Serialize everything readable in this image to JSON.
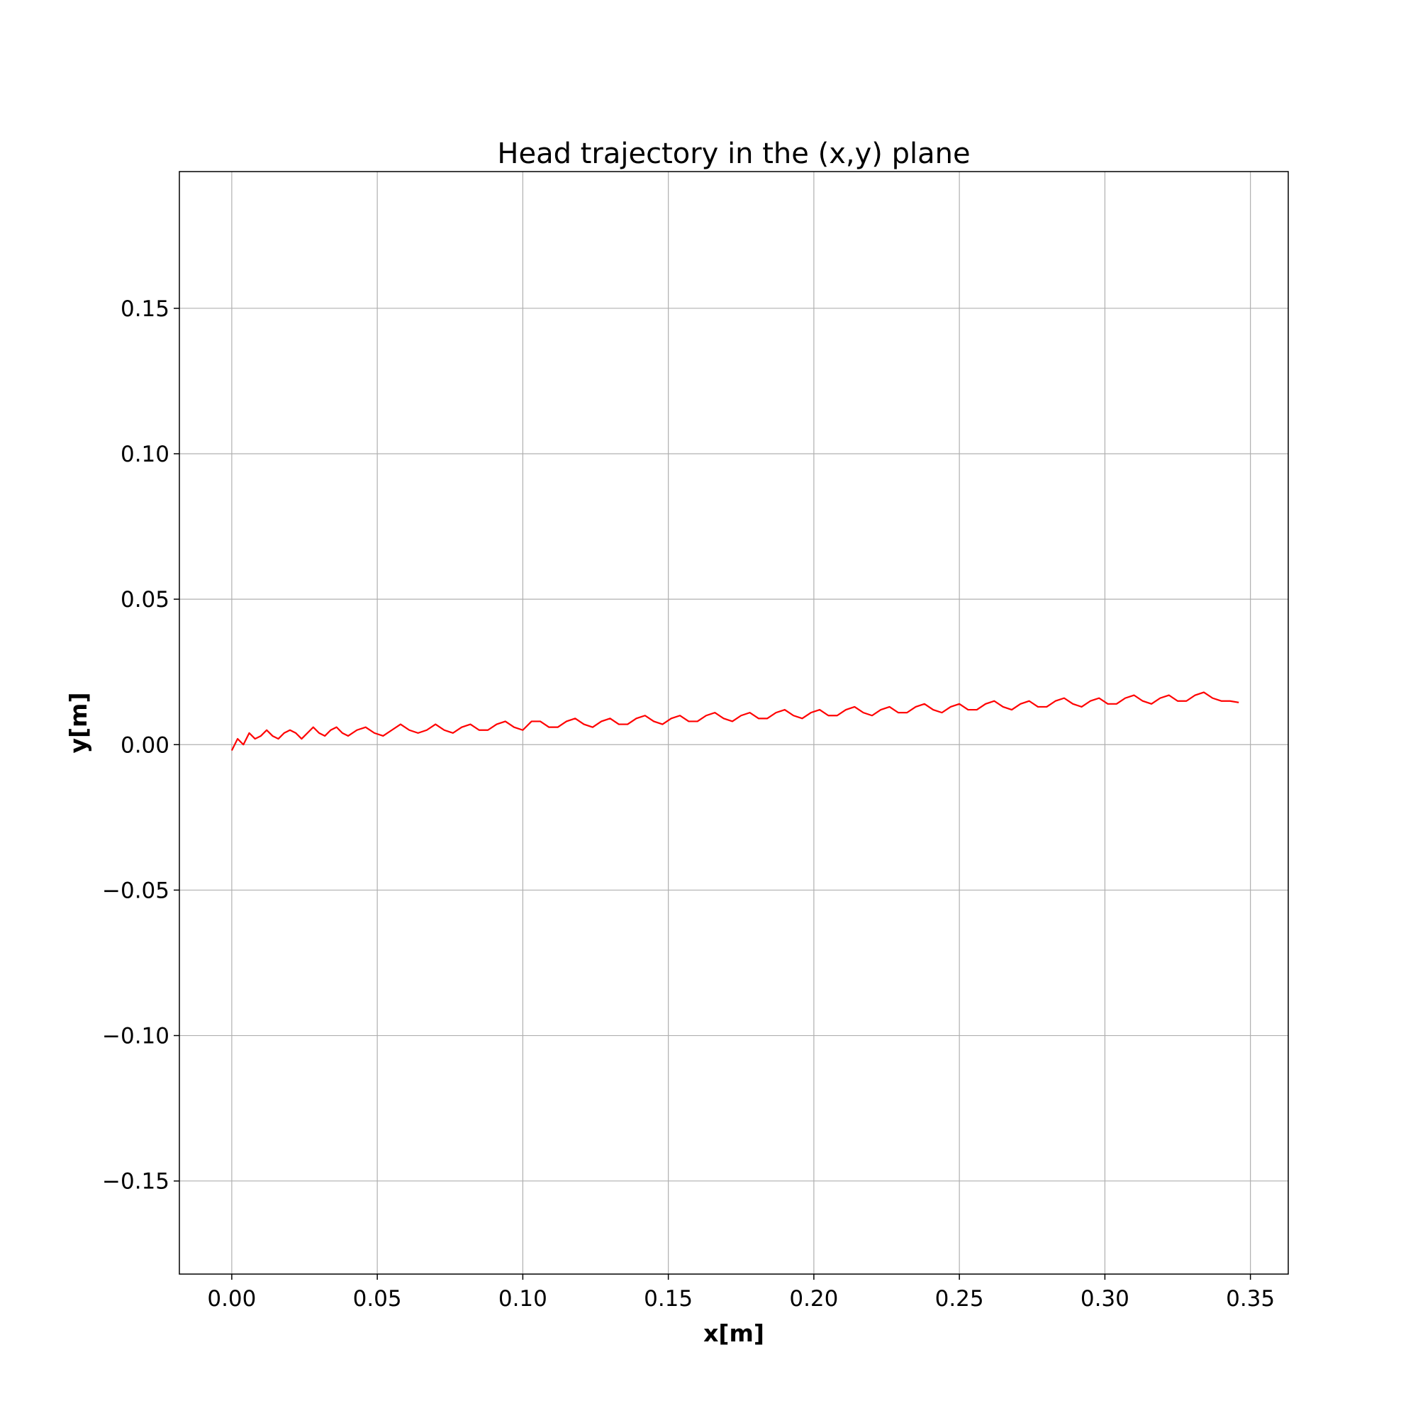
{
  "chart_data": {
    "type": "line",
    "title": "Head trajectory in the (x,y) plane",
    "xlabel": "x[m]",
    "ylabel": "y[m]",
    "xlim": [
      -0.018,
      0.363
    ],
    "ylim": [
      -0.182,
      0.197
    ],
    "grid": true,
    "xticks": [
      0.0,
      0.05,
      0.1,
      0.15,
      0.2,
      0.25,
      0.3,
      0.35
    ],
    "xtick_labels": [
      "0.00",
      "0.05",
      "0.10",
      "0.15",
      "0.20",
      "0.25",
      "0.30",
      "0.35"
    ],
    "yticks": [
      -0.15,
      -0.1,
      -0.05,
      0.0,
      0.05,
      0.1,
      0.15
    ],
    "ytick_labels": [
      "−0.15",
      "−0.10",
      "−0.05",
      "0.00",
      "0.05",
      "0.10",
      "0.15"
    ],
    "series": [
      {
        "color": "#ff0000",
        "x": [
          0.0,
          0.002,
          0.004,
          0.006,
          0.008,
          0.01,
          0.012,
          0.014,
          0.016,
          0.018,
          0.02,
          0.022,
          0.024,
          0.026,
          0.028,
          0.03,
          0.032,
          0.034,
          0.036,
          0.038,
          0.04,
          0.043,
          0.046,
          0.049,
          0.052,
          0.055,
          0.058,
          0.061,
          0.064,
          0.067,
          0.07,
          0.073,
          0.076,
          0.079,
          0.082,
          0.085,
          0.088,
          0.091,
          0.094,
          0.097,
          0.1,
          0.103,
          0.106,
          0.109,
          0.112,
          0.115,
          0.118,
          0.121,
          0.124,
          0.127,
          0.13,
          0.133,
          0.136,
          0.139,
          0.142,
          0.145,
          0.148,
          0.151,
          0.154,
          0.157,
          0.16,
          0.163,
          0.166,
          0.169,
          0.172,
          0.175,
          0.178,
          0.181,
          0.184,
          0.187,
          0.19,
          0.193,
          0.196,
          0.199,
          0.202,
          0.205,
          0.208,
          0.211,
          0.214,
          0.217,
          0.22,
          0.223,
          0.226,
          0.229,
          0.232,
          0.235,
          0.238,
          0.241,
          0.244,
          0.247,
          0.25,
          0.253,
          0.256,
          0.259,
          0.262,
          0.265,
          0.268,
          0.271,
          0.274,
          0.277,
          0.28,
          0.283,
          0.286,
          0.289,
          0.292,
          0.295,
          0.298,
          0.301,
          0.304,
          0.307,
          0.31,
          0.313,
          0.316,
          0.319,
          0.322,
          0.325,
          0.328,
          0.331,
          0.334,
          0.337,
          0.34,
          0.343,
          0.346
        ],
        "y": [
          -0.002,
          0.002,
          0.0,
          0.004,
          0.002,
          0.003,
          0.005,
          0.003,
          0.002,
          0.004,
          0.005,
          0.004,
          0.002,
          0.004,
          0.006,
          0.004,
          0.003,
          0.005,
          0.006,
          0.004,
          0.003,
          0.005,
          0.006,
          0.004,
          0.003,
          0.005,
          0.007,
          0.005,
          0.004,
          0.005,
          0.007,
          0.005,
          0.004,
          0.006,
          0.007,
          0.005,
          0.005,
          0.007,
          0.008,
          0.006,
          0.005,
          0.008,
          0.008,
          0.006,
          0.006,
          0.008,
          0.009,
          0.007,
          0.006,
          0.008,
          0.009,
          0.007,
          0.007,
          0.009,
          0.01,
          0.008,
          0.007,
          0.009,
          0.01,
          0.008,
          0.008,
          0.01,
          0.011,
          0.009,
          0.008,
          0.01,
          0.011,
          0.009,
          0.009,
          0.011,
          0.012,
          0.01,
          0.009,
          0.011,
          0.012,
          0.01,
          0.01,
          0.012,
          0.013,
          0.011,
          0.01,
          0.012,
          0.013,
          0.011,
          0.011,
          0.013,
          0.014,
          0.012,
          0.011,
          0.013,
          0.014,
          0.012,
          0.012,
          0.014,
          0.015,
          0.013,
          0.012,
          0.014,
          0.015,
          0.013,
          0.013,
          0.015,
          0.016,
          0.014,
          0.013,
          0.015,
          0.016,
          0.014,
          0.014,
          0.016,
          0.017,
          0.015,
          0.014,
          0.016,
          0.017,
          0.015,
          0.015,
          0.017,
          0.018,
          0.016,
          0.015,
          0.015,
          0.0145
        ]
      }
    ]
  }
}
